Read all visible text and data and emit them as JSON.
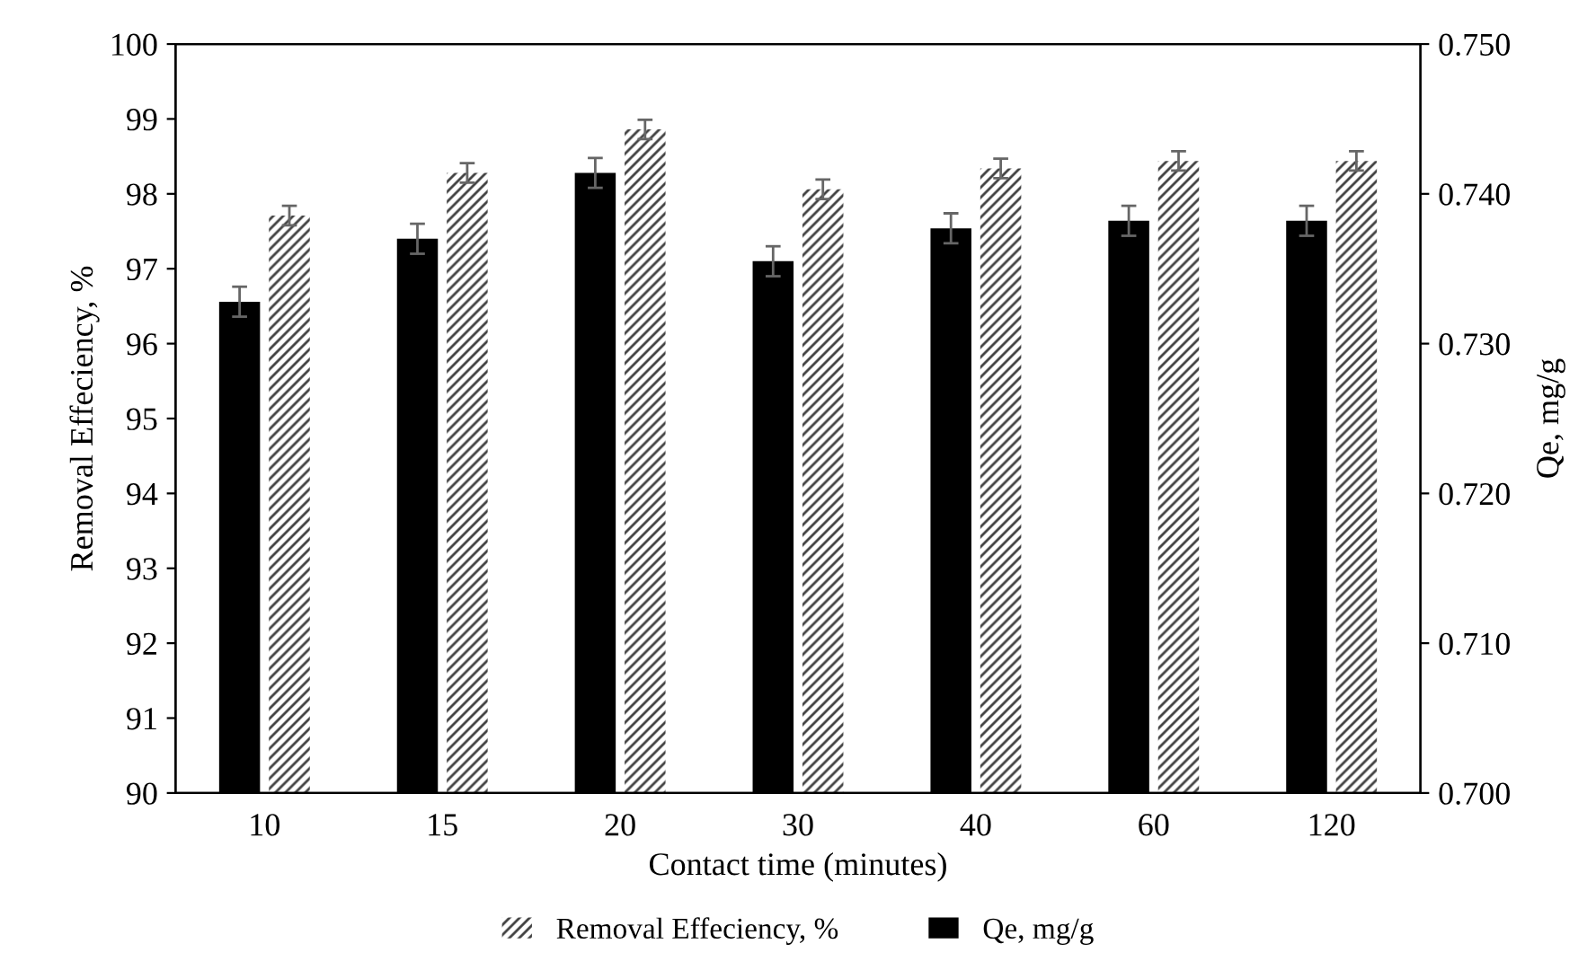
{
  "chart_data": {
    "type": "bar",
    "xlabel": "Contact time (minutes)",
    "ylabel": "Removal Effeciency, %",
    "y2label": "Qe, mg/g",
    "categories": [
      "10",
      "15",
      "20",
      "30",
      "40",
      "60",
      "120"
    ],
    "series": [
      {
        "name": "Removal Effeciency, %",
        "color": "#404040",
        "values": [
          97.71,
          98.28,
          98.86,
          98.06,
          98.34,
          98.44,
          98.44
        ],
        "errors": [
          0.13,
          0.13,
          0.13,
          0.13,
          0.13,
          0.13,
          0.13
        ]
      },
      {
        "name": "Qe, mg/g",
        "color": "#000000",
        "axis": "y2",
        "values": [
          0.7328,
          0.737,
          0.7414,
          0.7355,
          0.7377,
          0.7382,
          0.7382
        ],
        "errors": [
          0.001,
          0.001,
          0.001,
          0.001,
          0.001,
          0.001,
          0.001
        ]
      }
    ],
    "ylim": [
      90,
      100
    ],
    "yticks": [
      90,
      91,
      92,
      93,
      94,
      95,
      96,
      97,
      98,
      99,
      100
    ],
    "y2lim": [
      0.7,
      0.75
    ],
    "y2ticks": [
      {
        "value": 0.7,
        "label": "0.700"
      },
      {
        "value": 0.71,
        "label": "0.710"
      },
      {
        "value": 0.72,
        "label": "0.720"
      },
      {
        "value": 0.73,
        "label": "0.730"
      },
      {
        "value": 0.74,
        "label": "0.740"
      },
      {
        "value": 0.75,
        "label": "0.750"
      }
    ],
    "legend": "bottom",
    "grid": false
  }
}
